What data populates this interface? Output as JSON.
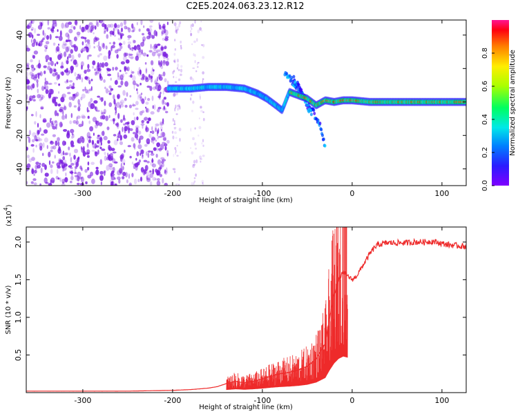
{
  "figure": {
    "title": "C2E5.2024.063.23.12.R12"
  },
  "colors": {
    "snr_line": "#ee2a2a",
    "frame": "#000000",
    "background": "#ffffff",
    "spectrogram_noise": "#7a1ee0"
  },
  "chart_data": [
    {
      "type": "heatmap",
      "title": "C2E5.2024.063.23.12.R12",
      "xlabel": "Height of straight line (km)",
      "ylabel": "Frequency (Hz)",
      "xlim": [
        -363,
        127
      ],
      "ylim": [
        -50,
        49
      ],
      "xticks": [
        -300,
        -200,
        -100,
        0,
        100
      ],
      "xtick_labels": [
        "-300",
        "-200",
        "-100",
        "0",
        "100"
      ],
      "yticks": [
        -40,
        -20,
        0,
        20,
        40
      ],
      "ytick_labels": [
        "-40",
        "-20",
        "0",
        "20",
        "40"
      ],
      "colorbar": {
        "label": "Normalized spectral amplitude",
        "range": [
          0,
          1
        ],
        "ticks": [
          0,
          0.2,
          0.4,
          0.6,
          0.8
        ],
        "tick_labels": [
          "0.0",
          "0.2",
          "0.4",
          "0.6",
          "0.8"
        ],
        "colormap": "rainbow"
      },
      "noise_region": [
        -363,
        -205
      ],
      "sparse_noise_regions": [
        [
          -200,
          -190
        ],
        [
          -180,
          -165
        ]
      ],
      "ridge": {
        "x": [
          -205,
          -180,
          -160,
          -140,
          -120,
          -105,
          -95,
          -85,
          -78,
          -70,
          -60,
          -50,
          -40,
          -30,
          -20,
          -10,
          0,
          20,
          60,
          127
        ],
        "y": [
          8,
          8,
          9,
          9,
          8,
          5,
          2,
          -2,
          -5,
          6,
          4,
          2,
          -2,
          1,
          0,
          1,
          1,
          0,
          0,
          0
        ],
        "peak": [
          -70,
          127
        ]
      },
      "echo_branches": [
        {
          "x": [
            -75,
            -60,
            -45,
            -35,
            -30
          ],
          "y": [
            18,
            8,
            -4,
            -15,
            -28
          ]
        },
        {
          "x": [
            -65,
            -55,
            -45
          ],
          "y": [
            14,
            4,
            -8
          ]
        }
      ]
    },
    {
      "type": "line",
      "xlabel": "Height of straight line (km)",
      "ylabel": "SNR (10 * v/v)",
      "scale_label": "(x10",
      "scale_exponent": "4",
      "scale_suffix": ")",
      "xlim": [
        -363,
        127
      ],
      "ylim": [
        0,
        2.2
      ],
      "xticks": [
        -300,
        -200,
        -100,
        0,
        100
      ],
      "xtick_labels": [
        "-300",
        "-200",
        "-100",
        "0",
        "100"
      ],
      "yticks": [
        0.5,
        1.0,
        1.5,
        2.0
      ],
      "ytick_labels": [
        "0.5",
        "1.0",
        "1.5",
        "2.0"
      ],
      "series": [
        {
          "x": [
            -363,
            -300,
            -250,
            -200,
            -180,
            -170,
            -160,
            -150,
            -140,
            -130,
            -120,
            -110,
            -100,
            -90,
            -80,
            -70,
            -60,
            -50,
            -40,
            -30,
            -25,
            -20,
            -15,
            -10,
            -5,
            0,
            5,
            10,
            15,
            20,
            25,
            30,
            40,
            50,
            60,
            70,
            80,
            90,
            100,
            110,
            127
          ],
          "y": [
            0.02,
            0.02,
            0.02,
            0.03,
            0.04,
            0.05,
            0.06,
            0.08,
            0.12,
            0.15,
            0.13,
            0.15,
            0.18,
            0.22,
            0.25,
            0.27,
            0.3,
            0.35,
            0.45,
            0.65,
            1.0,
            1.3,
            1.5,
            1.6,
            1.55,
            1.5,
            1.55,
            1.65,
            1.75,
            1.85,
            1.93,
            1.97,
            1.99,
            1.99,
            1.99,
            2.0,
            2.0,
            2.01,
            1.98,
            1.96,
            1.94
          ],
          "noise_band": [
            [
              -140,
              -5
            ]
          ]
        }
      ]
    }
  ]
}
